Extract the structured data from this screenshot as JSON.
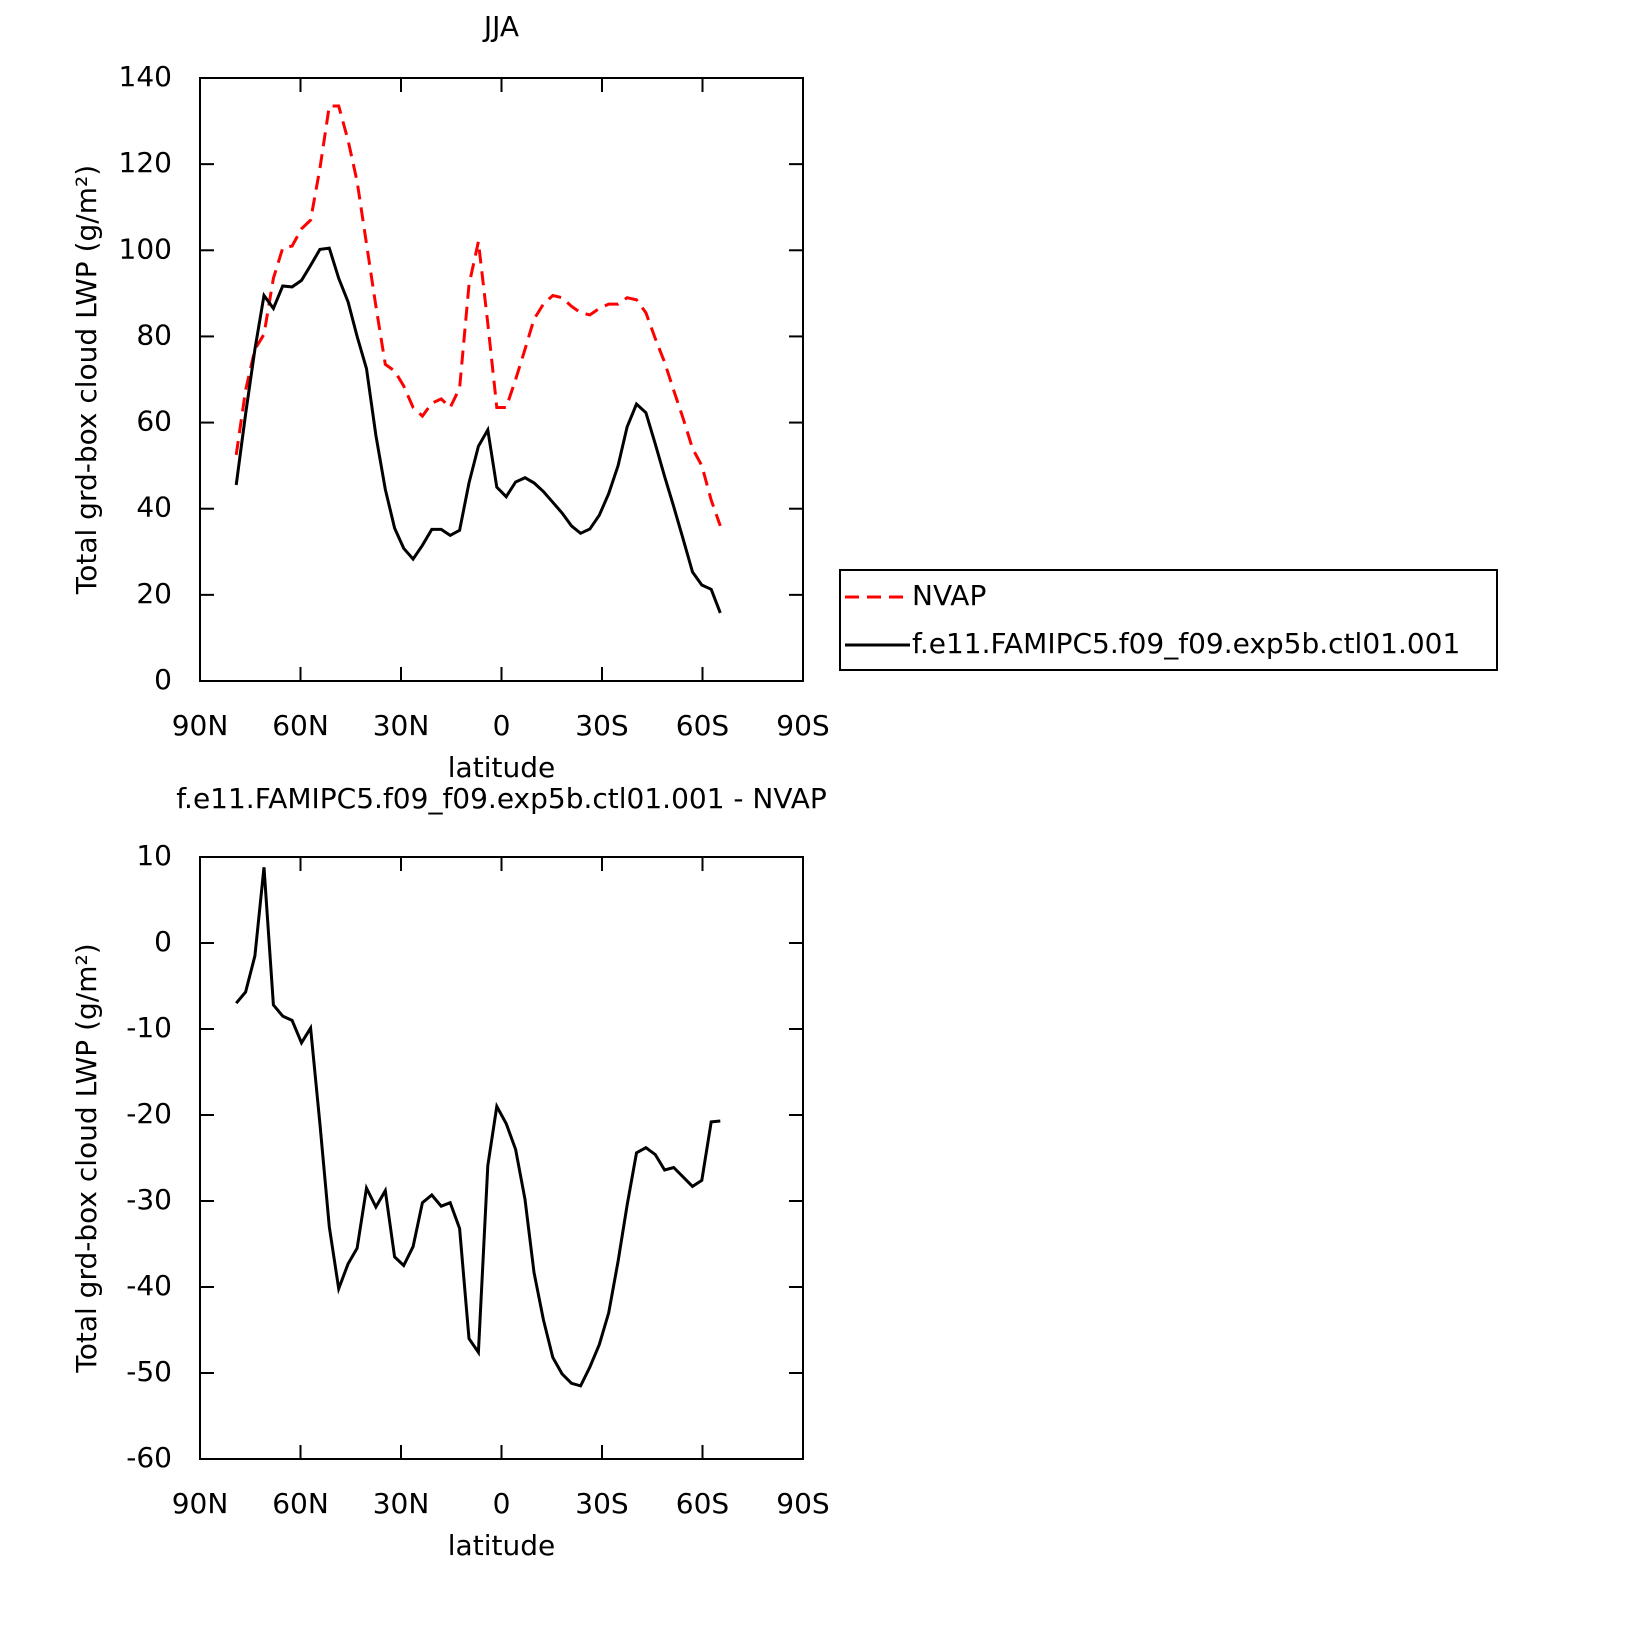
{
  "chart_data": [
    {
      "type": "line",
      "title": "JJA",
      "xlabel": "latitude",
      "ylabel": "Total grd-box cloud LWP (g/m²)",
      "x": [
        79.2,
        76.4,
        73.6,
        70.9,
        68.1,
        65.3,
        62.5,
        59.7,
        57.0,
        54.2,
        51.4,
        48.6,
        45.8,
        43.1,
        40.3,
        37.5,
        34.7,
        31.9,
        29.2,
        26.4,
        23.6,
        20.8,
        18.0,
        15.3,
        12.5,
        9.7,
        6.9,
        4.1,
        1.4,
        -1.4,
        -4.2,
        -7.0,
        -9.7,
        -12.5,
        -15.3,
        -18.1,
        -20.9,
        -23.6,
        -26.4,
        -29.2,
        -32.0,
        -34.8,
        -37.5,
        -40.3,
        -43.1,
        -45.9,
        -48.7,
        -51.4,
        -54.2,
        -57.0,
        -59.8,
        -62.6,
        -65.3
      ],
      "xlim": [
        90,
        -90
      ],
      "xticks": [
        {
          "value": 90,
          "label": "90N"
        },
        {
          "value": 60,
          "label": "60N"
        },
        {
          "value": 30,
          "label": "30N"
        },
        0,
        {
          "value": -30,
          "label": "30S"
        },
        {
          "value": -60,
          "label": "60S"
        },
        {
          "value": -90,
          "label": "90S"
        }
      ],
      "ylim": [
        0,
        140
      ],
      "yticks": [
        0,
        20,
        40,
        60,
        80,
        100,
        120,
        140
      ],
      "legend": "right",
      "series": [
        {
          "name": "NVAP",
          "color": "#ff0000",
          "line_style": "dashed",
          "values": [
            52.5,
            67.5,
            77,
            80.5,
            93.5,
            100.5,
            101,
            105,
            107,
            119,
            133.5,
            133.5,
            125.5,
            116,
            101.5,
            87,
            73.5,
            72,
            68.5,
            63.5,
            61.5,
            64.5,
            65.5,
            63.5,
            68,
            92,
            102,
            83,
            63.5,
            63.5,
            70,
            77,
            84,
            87.5,
            89.5,
            89,
            87,
            85.5,
            85,
            86.5,
            87.5,
            87.5,
            89,
            88.5,
            85.5,
            79.5,
            74,
            67.5,
            61,
            54,
            50,
            42,
            36
          ]
        },
        {
          "name": "f.e11.FAMIPC5.f09_f09.exp5b.ctl01.001",
          "color": "#000000",
          "line_style": "solid",
          "values": [
            45.5,
            62,
            77,
            89.5,
            86.5,
            91.7,
            91.5,
            93,
            96.5,
            100.2,
            100.5,
            93.5,
            88,
            80,
            72.5,
            57,
            44.5,
            35.5,
            30.8,
            28.3,
            31.5,
            35.2,
            35.2,
            33.8,
            35,
            46,
            54.5,
            58.3,
            45,
            42.8,
            46.2,
            47.2,
            46,
            44,
            41.5,
            39,
            36,
            34.3,
            35.3,
            38.5,
            43.5,
            50,
            59,
            64.3,
            62.3,
            55,
            47.5,
            40.5,
            33,
            25.3,
            22.3,
            21.3,
            15.8
          ]
        }
      ]
    },
    {
      "type": "line",
      "title": "f.e11.FAMIPC5.f09_f09.exp5b.ctl01.001 - NVAP",
      "xlabel": "latitude",
      "ylabel": "Total grd-box cloud LWP (g/m²)",
      "x": [
        79.2,
        76.4,
        73.6,
        70.9,
        68.1,
        65.3,
        62.5,
        59.7,
        57.0,
        54.2,
        51.4,
        48.6,
        45.8,
        43.1,
        40.3,
        37.5,
        34.7,
        31.9,
        29.2,
        26.4,
        23.6,
        20.8,
        18.0,
        15.3,
        12.5,
        9.7,
        6.9,
        4.1,
        1.4,
        -1.4,
        -4.2,
        -7.0,
        -9.7,
        -12.5,
        -15.3,
        -18.1,
        -20.9,
        -23.6,
        -26.4,
        -29.2,
        -32.0,
        -34.8,
        -37.5,
        -40.3,
        -43.1,
        -45.9,
        -48.7,
        -51.4,
        -54.2,
        -57.0,
        -59.8,
        -62.6,
        -65.3
      ],
      "xlim": [
        90,
        -90
      ],
      "xticks": [
        {
          "value": 90,
          "label": "90N"
        },
        {
          "value": 60,
          "label": "60N"
        },
        {
          "value": 30,
          "label": "30N"
        },
        0,
        {
          "value": -30,
          "label": "30S"
        },
        {
          "value": -60,
          "label": "60S"
        },
        {
          "value": -90,
          "label": "90S"
        }
      ],
      "ylim": [
        -60,
        10
      ],
      "yticks": [
        -60,
        -50,
        -40,
        -30,
        -20,
        -10,
        0,
        10
      ],
      "series": [
        {
          "color": "#000000",
          "line_style": "solid",
          "values": [
            -7,
            -5.7,
            -1.5,
            8.8,
            -7.2,
            -8.5,
            -9,
            -11.6,
            -9.9,
            -21,
            -33,
            -40.2,
            -37.3,
            -35.5,
            -28.5,
            -30.7,
            -28.8,
            -36.5,
            -37.5,
            -35.3,
            -30.2,
            -29.3,
            -30.6,
            -30.2,
            -33.2,
            -46,
            -47.6,
            -25.9,
            -19,
            -21,
            -24,
            -29.8,
            -38.3,
            -43.8,
            -48.2,
            -50.1,
            -51.2,
            -51.5,
            -49.3,
            -46.7,
            -43,
            -37,
            -30.5,
            -24.4,
            -23.8,
            -24.6,
            -26.4,
            -26.1,
            -27.2,
            -28.3,
            -27.6,
            -20.8,
            -20.7
          ]
        }
      ]
    }
  ]
}
